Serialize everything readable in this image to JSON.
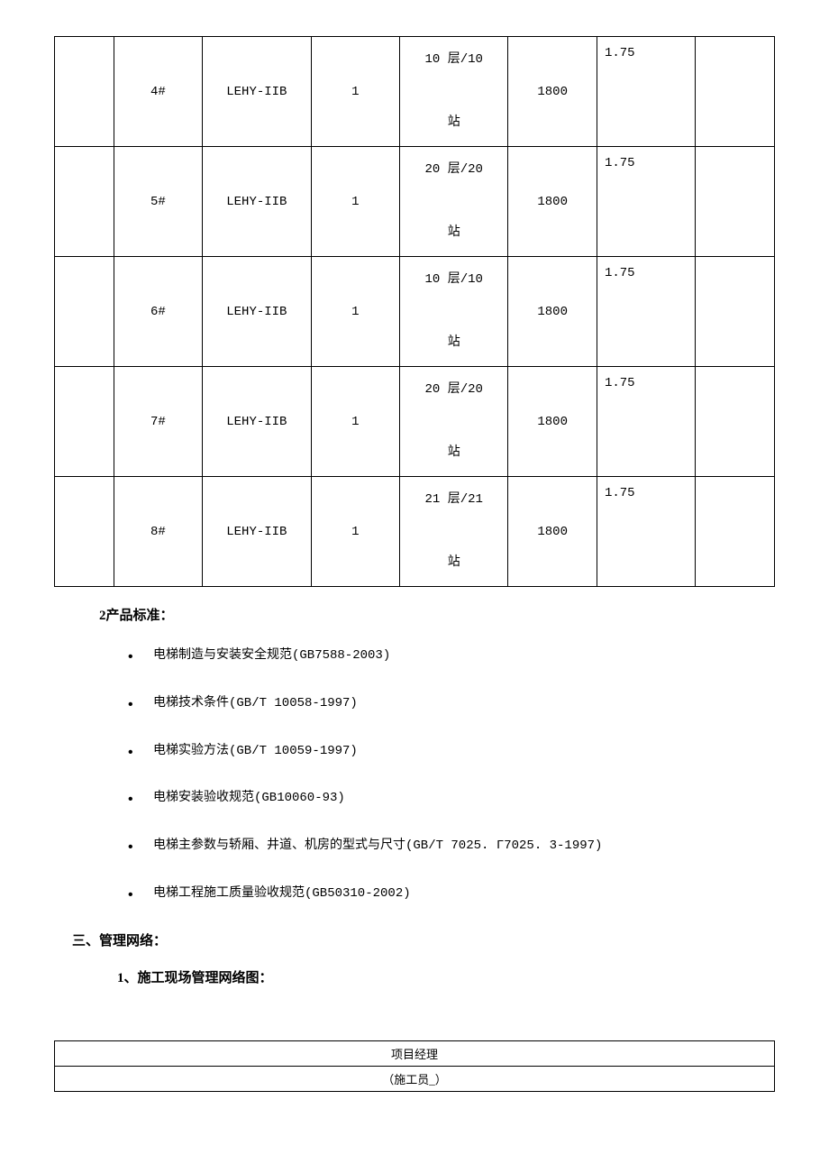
{
  "table": {
    "rows": [
      {
        "num": "4#",
        "model": "LEHY-IIB",
        "qty": "1",
        "floors": "10 层/10站",
        "load": "1800",
        "speed": "1.75"
      },
      {
        "num": "5#",
        "model": "LEHY-IIB",
        "qty": "1",
        "floors": "20 层/20站",
        "load": "1800",
        "speed": "1.75"
      },
      {
        "num": "6#",
        "model": "LEHY-IIB",
        "qty": "1",
        "floors": "10 层/10站",
        "load": "1800",
        "speed": "1.75"
      },
      {
        "num": "7#",
        "model": "LEHY-IIB",
        "qty": "1",
        "floors": "20 层/20站",
        "load": "1800",
        "speed": "1.75"
      },
      {
        "num": "8#",
        "model": "LEHY-IIB",
        "qty": "1",
        "floors": "21 层/21站",
        "load": "1800",
        "speed": "1.75"
      }
    ]
  },
  "section2": {
    "title": "2产品标准：",
    "items": [
      "电梯制造与安装安全规范(GB7588-2003)",
      "电梯技术条件(GB/T 10058-1997)",
      "电梯实验方法(GB/T 10059-1997)",
      "电梯安装验收规范(GB10060-93)",
      "电梯主参数与轿厢、井道、机房的型式与尺寸(GB/T 7025. Γ7025. 3-1997)",
      "电梯工程施工质量验收规范(GB50310-2002)"
    ]
  },
  "section3": {
    "heading": "三、管理网络：",
    "subheading": "1、施工现场管理网络图：",
    "org": {
      "row1": "项目经理",
      "row2": "（施工员_）"
    }
  }
}
